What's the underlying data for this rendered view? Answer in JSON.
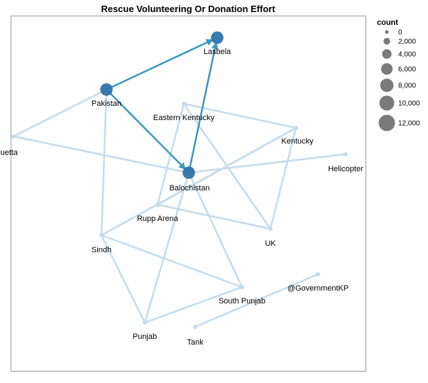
{
  "title": "Rescue Volunteering Or Donation Effort",
  "colors": {
    "strong_edge": "#3a98c0",
    "weak_edge": "#c3dbec",
    "big_node": "#2f74ab",
    "small_node": "#c3dbec",
    "legend_symbol": "#7a7a7a",
    "frame": "#9a9a9a"
  },
  "legend": {
    "title": "count",
    "items": [
      {
        "label": "0",
        "value": 0
      },
      {
        "label": "2,000",
        "value": 2000
      },
      {
        "label": "4,000",
        "value": 4000
      },
      {
        "label": "6,000",
        "value": 6000
      },
      {
        "label": "8,000",
        "value": 8000
      },
      {
        "label": "10,000",
        "value": 10000
      },
      {
        "label": "12,000",
        "value": 12000
      }
    ]
  },
  "nodes": [
    {
      "id": "lasbela",
      "label": "Lasbela",
      "count": 7000
    },
    {
      "id": "pakistan",
      "label": "Pakistan",
      "count": 7000
    },
    {
      "id": "eastern-kentucky",
      "label": "Eastern Kentucky",
      "count": 300
    },
    {
      "id": "kentucky",
      "label": "Kentucky",
      "count": 300
    },
    {
      "id": "quetta",
      "label": "uetta",
      "count": 300
    },
    {
      "id": "helicopter",
      "label": "Helicopter",
      "count": 300
    },
    {
      "id": "balochistan",
      "label": "Balochistan",
      "count": 7000
    },
    {
      "id": "rupp-arena",
      "label": "Rupp Arena",
      "count": 300
    },
    {
      "id": "uk",
      "label": "UK",
      "count": 300
    },
    {
      "id": "sindh",
      "label": "Sindh",
      "count": 300
    },
    {
      "id": "government-kp",
      "label": "@GovernmentKP",
      "count": 300
    },
    {
      "id": "south-punjab",
      "label": "South Punjab",
      "count": 300
    },
    {
      "id": "punjab",
      "label": "Punjab",
      "count": 300
    },
    {
      "id": "tank",
      "label": "Tank",
      "count": 300
    }
  ],
  "edges": [
    {
      "source": "pakistan",
      "target": "lasbela",
      "strength": "strong"
    },
    {
      "source": "balochistan",
      "target": "lasbela",
      "strength": "strong"
    },
    {
      "source": "pakistan",
      "target": "balochistan",
      "strength": "strong"
    },
    {
      "source": "quetta",
      "target": "pakistan",
      "strength": "weak"
    },
    {
      "source": "quetta",
      "target": "balochistan",
      "strength": "weak"
    },
    {
      "source": "balochistan",
      "target": "helicopter",
      "strength": "weak"
    },
    {
      "source": "pakistan",
      "target": "sindh",
      "strength": "weak"
    },
    {
      "source": "sindh",
      "target": "kentucky",
      "strength": "weak"
    },
    {
      "source": "sindh",
      "target": "punjab",
      "strength": "weak"
    },
    {
      "source": "sindh",
      "target": "south-punjab",
      "strength": "weak"
    },
    {
      "source": "eastern-kentucky",
      "target": "kentucky",
      "strength": "weak"
    },
    {
      "source": "eastern-kentucky",
      "target": "uk",
      "strength": "weak"
    },
    {
      "source": "eastern-kentucky",
      "target": "rupp-arena",
      "strength": "weak"
    },
    {
      "source": "kentucky",
      "target": "uk",
      "strength": "weak"
    },
    {
      "source": "kentucky",
      "target": "rupp-arena",
      "strength": "weak"
    },
    {
      "source": "rupp-arena",
      "target": "uk",
      "strength": "weak"
    },
    {
      "source": "balochistan",
      "target": "punjab",
      "strength": "weak"
    },
    {
      "source": "balochistan",
      "target": "south-punjab",
      "strength": "weak"
    },
    {
      "source": "punjab",
      "target": "south-punjab",
      "strength": "weak"
    },
    {
      "source": "government-kp",
      "target": "tank",
      "strength": "weak"
    }
  ]
}
